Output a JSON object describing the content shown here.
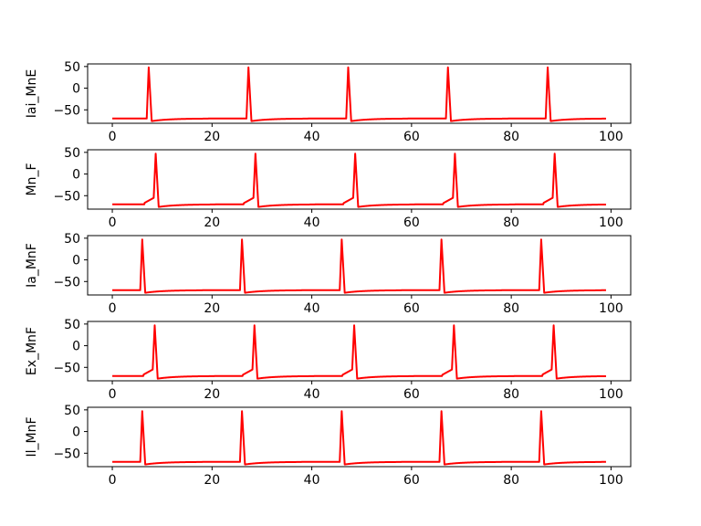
{
  "chart_data": [
    {
      "type": "line",
      "ylabel": "Iai_MnE",
      "xlim": [
        -4.95,
        103.95
      ],
      "ylim": [
        -81,
        56
      ],
      "xticks": [
        0,
        20,
        40,
        60,
        80,
        100
      ],
      "yticks": [
        50,
        0,
        -50
      ],
      "series_color": "#ff0000",
      "rest_potential": -70,
      "spike_times": [
        7.3,
        27.3,
        47.3,
        67.3,
        87.3
      ],
      "spike_peak": 48,
      "prespike_shoulder": false
    },
    {
      "type": "line",
      "ylabel": "Mn_F",
      "xlim": [
        -4.95,
        103.95
      ],
      "ylim": [
        -81,
        56
      ],
      "xticks": [
        0,
        20,
        40,
        60,
        80,
        100
      ],
      "yticks": [
        50,
        0,
        -50
      ],
      "series_color": "#ff0000",
      "rest_potential": -70,
      "spike_times": [
        8.7,
        28.7,
        48.7,
        68.7,
        88.7
      ],
      "spike_peak": 47,
      "prespike_shoulder": true
    },
    {
      "type": "line",
      "ylabel": "Ia_MnF",
      "xlim": [
        -4.95,
        103.95
      ],
      "ylim": [
        -81,
        56
      ],
      "xticks": [
        0,
        20,
        40,
        60,
        80,
        100
      ],
      "yticks": [
        50,
        0,
        -50
      ],
      "series_color": "#ff0000",
      "rest_potential": -70,
      "spike_times": [
        6.0,
        26.0,
        46.0,
        66.0,
        86.0
      ],
      "spike_peak": 47,
      "prespike_shoulder": false
    },
    {
      "type": "line",
      "ylabel": "Ex_MnF",
      "xlim": [
        -4.95,
        103.95
      ],
      "ylim": [
        -81,
        56
      ],
      "xticks": [
        0,
        20,
        40,
        60,
        80,
        100
      ],
      "yticks": [
        50,
        0,
        -50
      ],
      "series_color": "#ff0000",
      "rest_potential": -70,
      "spike_times": [
        8.5,
        28.5,
        48.5,
        68.5,
        88.5
      ],
      "spike_peak": 47,
      "prespike_shoulder": true
    },
    {
      "type": "line",
      "ylabel": "Il_MnF",
      "xlim": [
        -4.95,
        103.95
      ],
      "ylim": [
        -81,
        56
      ],
      "xticks": [
        0,
        20,
        40,
        60,
        80,
        100
      ],
      "yticks": [
        50,
        0,
        -50
      ],
      "series_color": "#ff0000",
      "rest_potential": -70,
      "spike_times": [
        6.0,
        26.0,
        46.0,
        66.0,
        86.0
      ],
      "spike_peak": 47,
      "prespike_shoulder": false
    }
  ]
}
